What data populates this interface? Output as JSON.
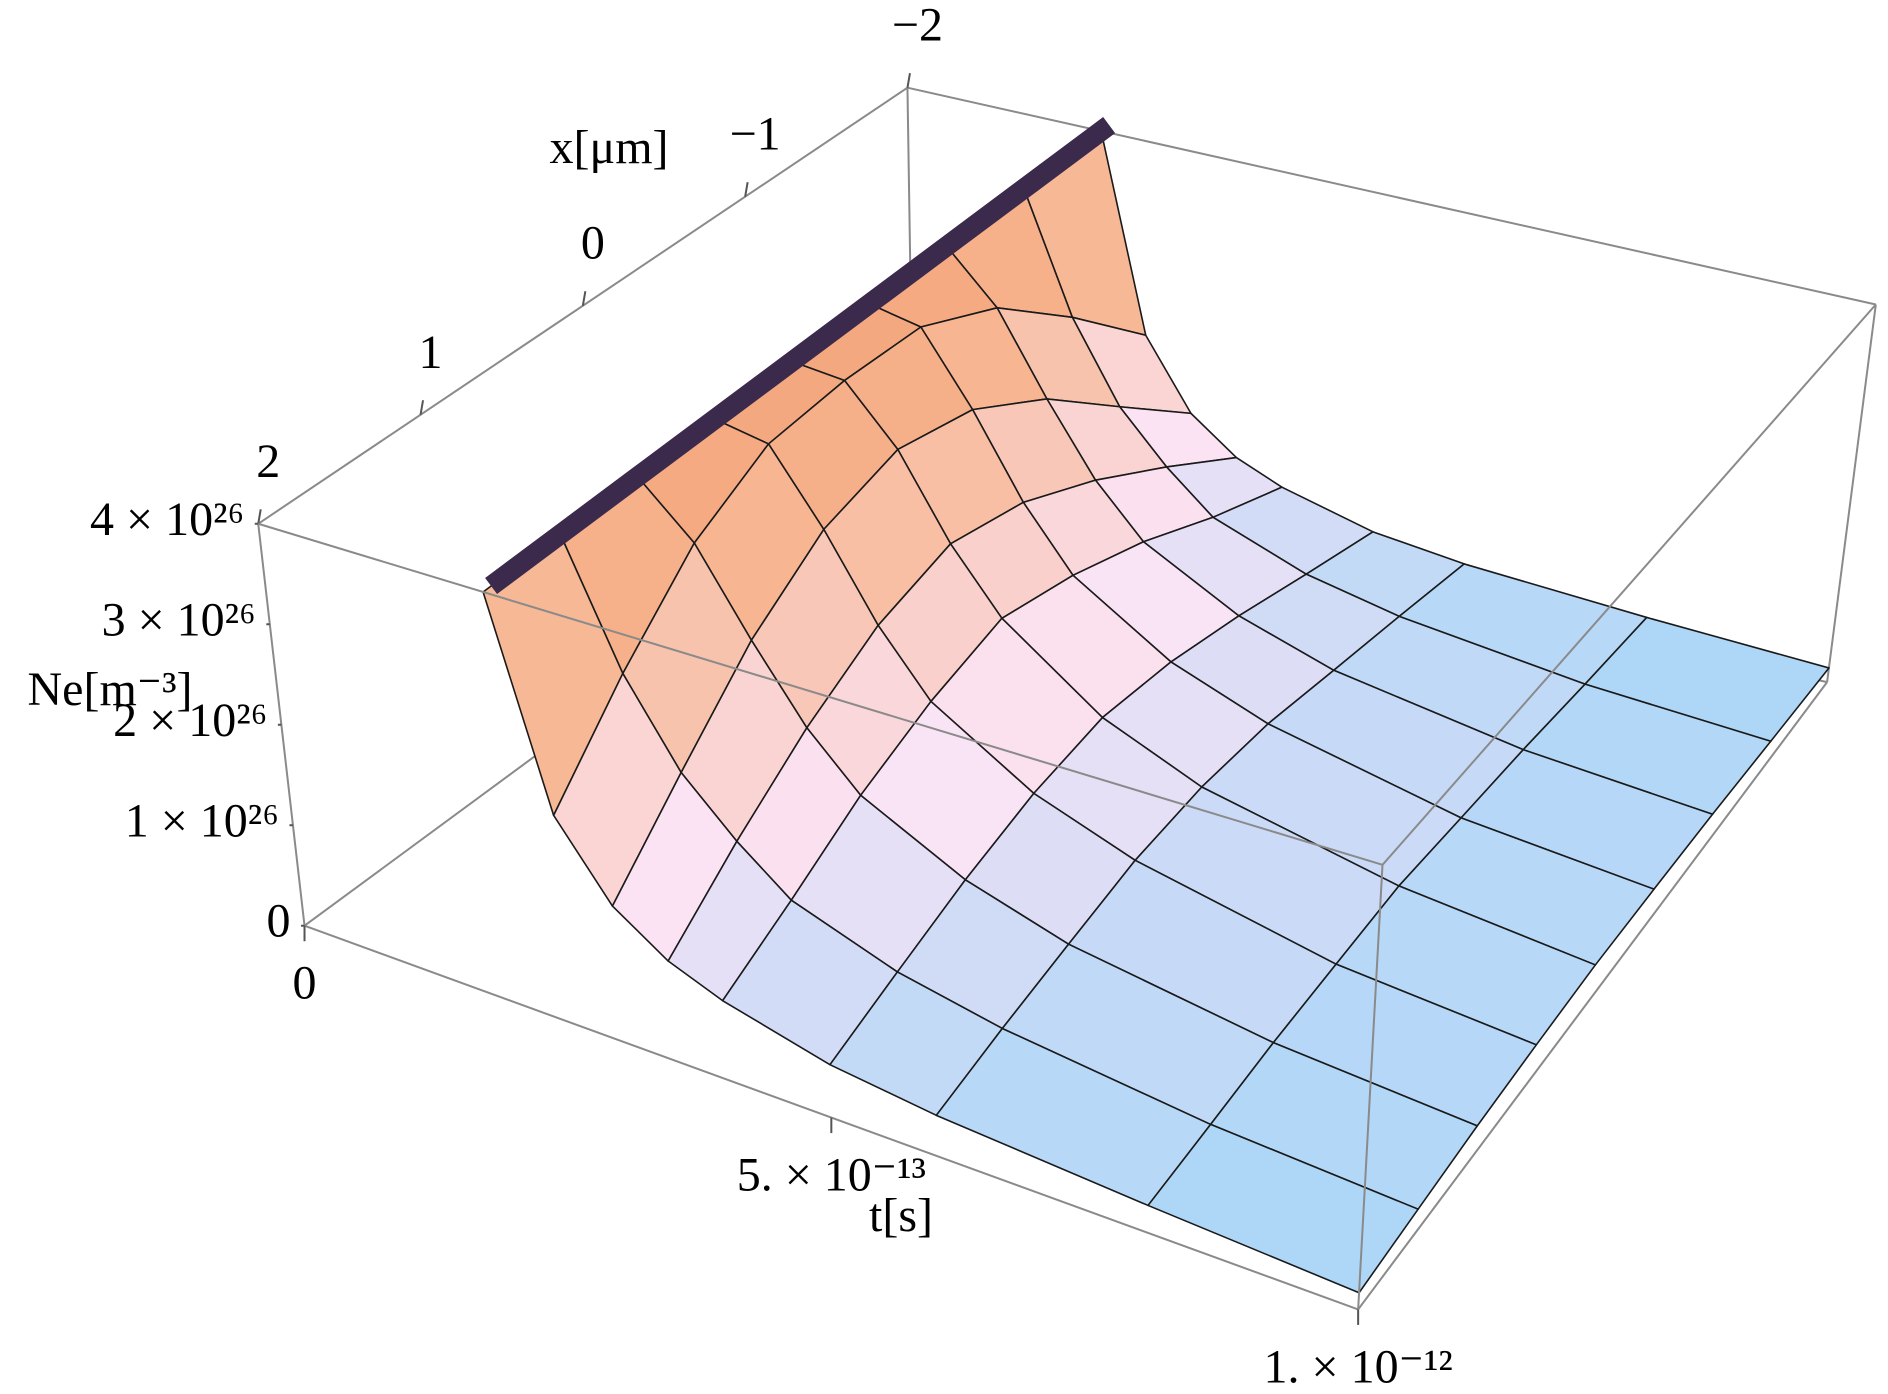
{
  "chart_data": {
    "type": "surface",
    "xlabel": "x[μm]",
    "tlabel": "t[s]",
    "zlabel": "Ne[m⁻³]",
    "xlim": [
      -2,
      2
    ],
    "tlim": [
      0,
      1e-12
    ],
    "zlim": [
      0,
      4e+26
    ],
    "xticks": [
      {
        "value": -2,
        "label": "−2"
      },
      {
        "value": -1,
        "label": "−1"
      },
      0,
      1,
      2
    ],
    "tticks": [
      0,
      {
        "value": 5e-13,
        "label": "5. × 10⁻¹³"
      },
      {
        "value": 1e-12,
        "label": "1. × 10⁻¹²"
      }
    ],
    "zticks": [
      0,
      {
        "value": 1e+26,
        "label": "1 × 10²⁶"
      },
      {
        "value": 2e+26,
        "label": "2 × 10²⁶"
      },
      {
        "value": 3e+26,
        "label": "3 × 10²⁶"
      },
      {
        "value": 4e+26,
        "label": "4 × 10²⁶"
      }
    ],
    "x": [
      -2,
      -1.5,
      -1,
      -0.5,
      0,
      0.5,
      1,
      1.5,
      2
    ],
    "t": [
      2e-13,
      2.5e-13,
      3e-13,
      3.5e-13,
      4e-13,
      5e-13,
      6e-13,
      8e-13,
      1e-12
    ],
    "z": [
      [
        4e+26,
        4e+26,
        4e+26,
        4e+26,
        4e+26,
        4e+26,
        4e+26,
        4e+26,
        4e+26
      ],
      [
        2e+26,
        2.8e+26,
        3.5e+26,
        3.9e+26,
        3.95e+26,
        3.9e+26,
        3.5e+26,
        2.8e+26,
        2e+26
      ],
      [
        1.3e+26,
        2e+26,
        2.7e+26,
        3.2e+26,
        3.4e+26,
        3.2e+26,
        2.7e+26,
        2e+26,
        1.3e+26
      ],
      [
        9.5e+25,
        1.5e+26,
        2e+26,
        2.4e+26,
        2.6e+26,
        2.4e+26,
        2e+26,
        1.5e+26,
        9.5e+25
      ],
      [
        7.5e+25,
        1.1e+26,
        1.5e+26,
        1.8e+26,
        2e+26,
        1.8e+26,
        1.5e+26,
        1.1e+26,
        7.5e+25
      ],
      [
        5e+25,
        7.5e+25,
        1e+26,
        1.2e+26,
        1.3e+26,
        1.2e+26,
        1e+26,
        7.5e+25,
        5e+25
      ],
      [
        3.8e+25,
        5.5e+25,
        7e+25,
        8.5e+25,
        9e+25,
        8.5e+25,
        7e+25,
        5.5e+25,
        3.8e+25
      ],
      [
        2.5e+25,
        3.2e+25,
        4e+25,
        4.5e+25,
        5e+25,
        4.5e+25,
        4e+25,
        3.2e+25,
        2.5e+25
      ],
      [
        1.5e+25,
        2e+25,
        2.5e+25,
        2.8e+25,
        3e+25,
        2.8e+25,
        2.5e+25,
        2e+25,
        1.5e+25
      ]
    ],
    "cap_color": "#3b2a4c"
  }
}
